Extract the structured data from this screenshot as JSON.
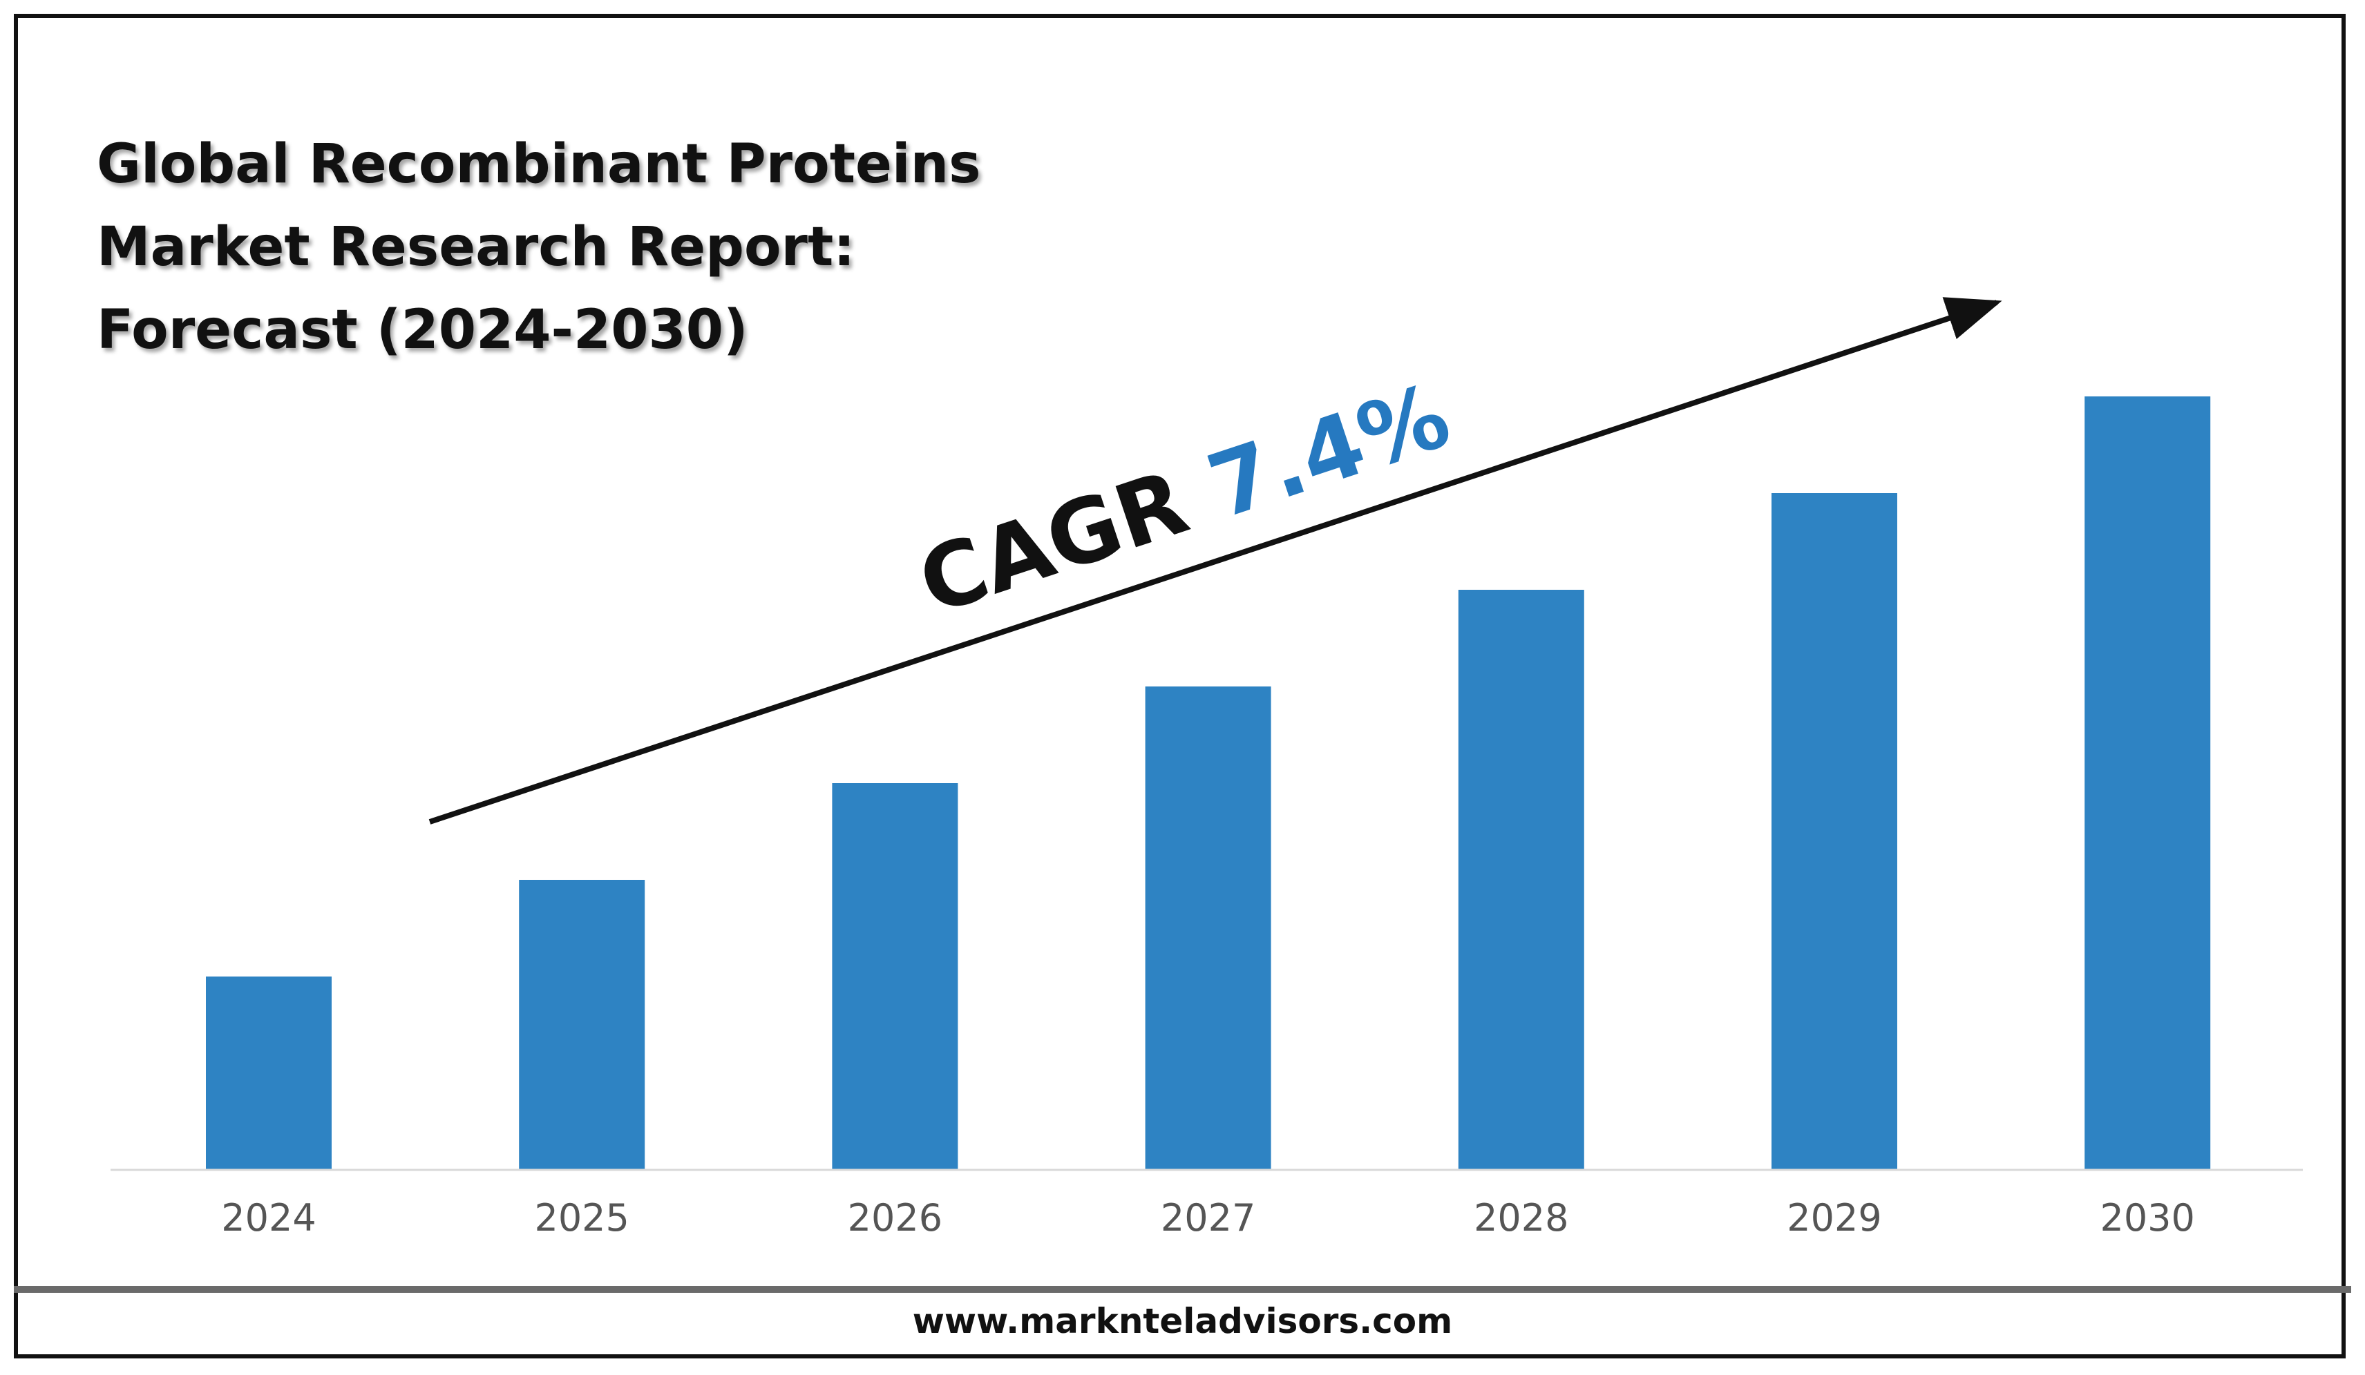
{
  "page": {
    "title_lines": [
      "Global Recombinant Proteins",
      "Market Research Report:",
      "Forecast (2024-2030)"
    ],
    "footer_url": "www.marknteladvisors.com"
  },
  "chart_data": {
    "type": "bar",
    "categories": [
      "2024",
      "2025",
      "2026",
      "2027",
      "2028",
      "2029",
      "2030"
    ],
    "values": [
      20,
      30,
      40,
      50,
      60,
      70,
      80
    ],
    "ylim": [
      0,
      100
    ],
    "y_axis_shown": false,
    "grid": false,
    "legend": "none",
    "annotation": {
      "prefix": "CAGR ",
      "value": "7.4%",
      "arrow": "upward trend arrow from 2024 to 2030"
    },
    "colors": {
      "bar": "#2E83C3",
      "cagr_value": "#2679C0",
      "cagr_prefix": "#111111",
      "baseline": "#D9D9D9"
    }
  }
}
